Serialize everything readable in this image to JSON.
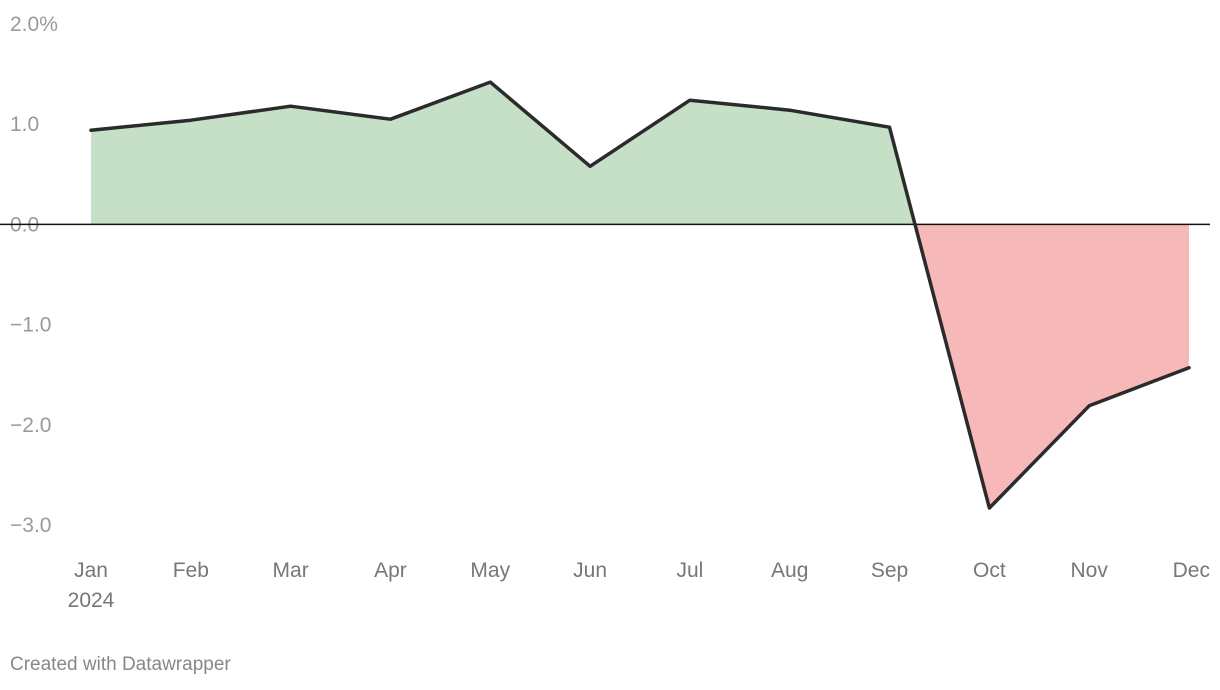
{
  "chart_data": {
    "type": "area",
    "title": "",
    "xlabel": "",
    "ylabel": "",
    "categories": [
      "Jan",
      "Feb",
      "Mar",
      "Apr",
      "May",
      "Jun",
      "Jul",
      "Aug",
      "Sep",
      "Oct",
      "Nov",
      "Dec"
    ],
    "year_label": "2024",
    "values": [
      0.94,
      1.04,
      1.18,
      1.05,
      1.42,
      0.58,
      1.24,
      1.14,
      0.97,
      -2.83,
      -1.81,
      -1.43
    ],
    "ylim": [
      -3.0,
      2.0
    ],
    "y_ticks": [
      "2.0%",
      "1.0",
      "0.0",
      "−1.0",
      "−2.0",
      "−3.0"
    ],
    "grid": false,
    "colors": {
      "positive_fill": "#c5e0c7",
      "negative_fill": "#f7b8b9",
      "line": "#2b2b2b",
      "zero_line": "#111111"
    }
  },
  "footer": {
    "credit": "Created with Datawrapper"
  }
}
